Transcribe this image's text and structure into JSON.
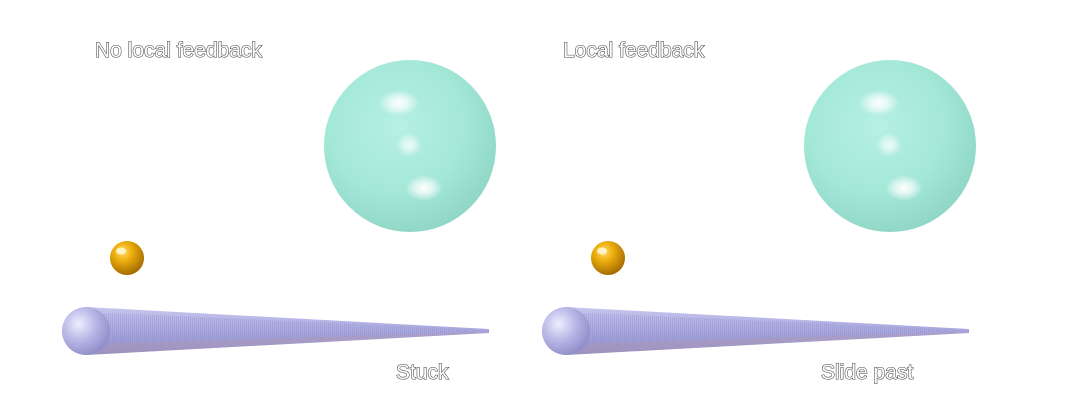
{
  "panels": [
    {
      "title": "No local feedback",
      "outcome": "Stuck"
    },
    {
      "title": "Local feedback",
      "outcome": "Slide past"
    }
  ],
  "colors": {
    "large_sphere": "#a4e8d8",
    "small_sphere": "#e3a20a",
    "needle": "#a9a8db",
    "label_fill": "#ffffff",
    "label_outline": "#444444"
  }
}
